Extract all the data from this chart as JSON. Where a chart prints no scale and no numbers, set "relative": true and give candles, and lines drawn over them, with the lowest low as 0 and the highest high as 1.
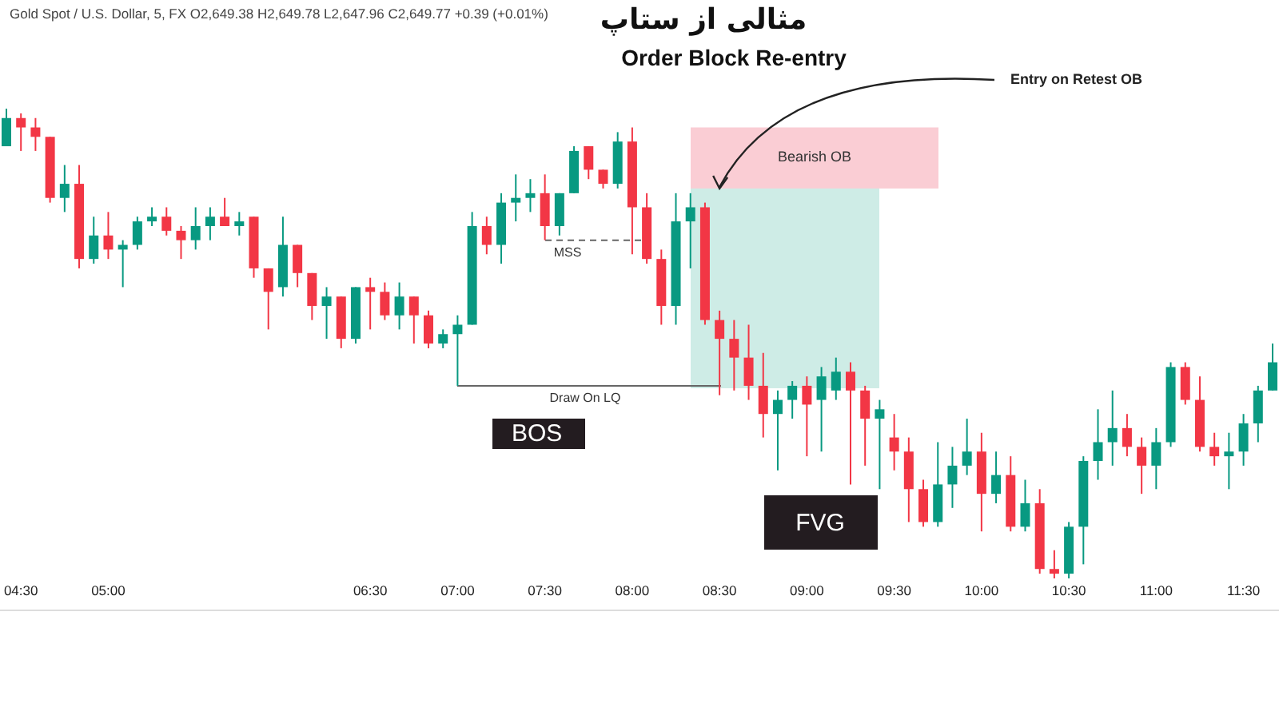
{
  "chart_data": {
    "type": "candlestick",
    "title": "مثالی از ستاپ",
    "subtitle": "Order Block Re-entry",
    "relative": true,
    "tick_labels": "x",
    "categories": [
      null,
      "04:30",
      null,
      null,
      null,
      null,
      null,
      "05:00",
      null,
      null,
      null,
      null,
      null,
      null,
      null,
      null,
      null,
      null,
      null,
      null,
      null,
      null,
      null,
      null,
      null,
      "06:30",
      null,
      null,
      null,
      null,
      null,
      "07:00",
      null,
      null,
      null,
      null,
      null,
      "07:30",
      null,
      null,
      null,
      null,
      null,
      "08:00",
      null,
      null,
      null,
      null,
      null,
      "08:30",
      null,
      null,
      null,
      null,
      null,
      "09:00",
      null,
      null,
      null,
      null,
      null,
      "09:30",
      null,
      null,
      null,
      null,
      null,
      "10:00",
      null,
      null,
      null,
      null,
      null,
      "10:30",
      null,
      null,
      null,
      null,
      null,
      "11:00",
      null,
      null,
      null,
      null,
      null,
      "11:30",
      null,
      null
    ],
    "ohlc": [
      [
        0.92,
        1,
        0.92,
        0.98
      ],
      [
        0.98,
        0.99,
        0.91,
        0.96
      ],
      [
        0.96,
        0.98,
        0.91,
        0.94
      ],
      [
        0.94,
        0.94,
        0.8,
        0.81
      ],
      [
        0.81,
        0.88,
        0.78,
        0.84
      ],
      [
        0.84,
        0.88,
        0.66,
        0.68
      ],
      [
        0.68,
        0.77,
        0.67,
        0.73
      ],
      [
        0.73,
        0.78,
        0.68,
        0.7
      ],
      [
        0.7,
        0.72,
        0.62,
        0.71
      ],
      [
        0.71,
        0.77,
        0.7,
        0.76
      ],
      [
        0.76,
        0.79,
        0.75,
        0.77
      ],
      [
        0.77,
        0.79,
        0.73,
        0.74
      ],
      [
        0.74,
        0.75,
        0.68,
        0.72
      ],
      [
        0.72,
        0.79,
        0.7,
        0.75
      ],
      [
        0.75,
        0.79,
        0.72,
        0.77
      ],
      [
        0.77,
        0.81,
        0.75,
        0.75
      ],
      [
        0.75,
        0.78,
        0.73,
        0.76
      ],
      [
        0.77,
        0.77,
        0.64,
        0.66
      ],
      [
        0.66,
        0.66,
        0.53,
        0.61
      ],
      [
        0.62,
        0.77,
        0.6,
        0.71
      ],
      [
        0.71,
        0.71,
        0.62,
        0.65
      ],
      [
        0.65,
        0.65,
        0.55,
        0.58
      ],
      [
        0.58,
        0.62,
        0.51,
        0.6
      ],
      [
        0.6,
        0.6,
        0.49,
        0.51
      ],
      [
        0.51,
        0.62,
        0.5,
        0.62
      ],
      [
        0.62,
        0.64,
        0.53,
        0.61
      ],
      [
        0.61,
        0.63,
        0.55,
        0.56
      ],
      [
        0.56,
        0.63,
        0.53,
        0.6
      ],
      [
        0.6,
        0.6,
        0.5,
        0.56
      ],
      [
        0.56,
        0.57,
        0.49,
        0.5
      ],
      [
        0.5,
        0.53,
        0.49,
        0.52
      ],
      [
        0.52,
        0.56,
        0.41,
        0.54
      ],
      [
        0.54,
        0.78,
        0.54,
        0.75
      ],
      [
        0.75,
        0.77,
        0.69,
        0.71
      ],
      [
        0.71,
        0.82,
        0.67,
        0.8
      ],
      [
        0.8,
        0.86,
        0.76,
        0.81
      ],
      [
        0.81,
        0.85,
        0.78,
        0.82
      ],
      [
        0.82,
        0.86,
        0.72,
        0.75
      ],
      [
        0.75,
        0.82,
        0.73,
        0.82
      ],
      [
        0.82,
        0.92,
        0.82,
        0.91
      ],
      [
        0.92,
        0.92,
        0.85,
        0.87
      ],
      [
        0.87,
        0.87,
        0.83,
        0.84
      ],
      [
        0.84,
        0.95,
        0.83,
        0.93
      ],
      [
        0.93,
        0.96,
        0.69,
        0.79
      ],
      [
        0.79,
        0.82,
        0.67,
        0.68
      ],
      [
        0.68,
        0.7,
        0.54,
        0.58
      ],
      [
        0.58,
        0.82,
        0.54,
        0.76
      ],
      [
        0.76,
        0.82,
        0.66,
        0.79
      ],
      [
        0.79,
        0.8,
        0.54,
        0.55
      ],
      [
        0.55,
        0.57,
        0.39,
        0.51
      ],
      [
        0.51,
        0.55,
        0.4,
        0.47
      ],
      [
        0.47,
        0.54,
        0.38,
        0.41
      ],
      [
        0.41,
        0.48,
        0.3,
        0.35
      ],
      [
        0.35,
        0.4,
        0.23,
        0.38
      ],
      [
        0.38,
        0.42,
        0.34,
        0.41
      ],
      [
        0.41,
        0.43,
        0.26,
        0.37
      ],
      [
        0.38,
        0.45,
        0.27,
        0.43
      ],
      [
        0.4,
        0.47,
        0.38,
        0.44
      ],
      [
        0.44,
        0.46,
        0.2,
        0.4
      ],
      [
        0.4,
        0.41,
        0.24,
        0.34
      ],
      [
        0.34,
        0.38,
        0.19,
        0.36
      ],
      [
        0.3,
        0.35,
        0.23,
        0.27
      ],
      [
        0.27,
        0.3,
        0.12,
        0.19
      ],
      [
        0.19,
        0.21,
        0.11,
        0.12
      ],
      [
        0.12,
        0.29,
        0.11,
        0.2
      ],
      [
        0.2,
        0.28,
        0.15,
        0.24
      ],
      [
        0.24,
        0.34,
        0.22,
        0.27
      ],
      [
        0.27,
        0.31,
        0.1,
        0.18
      ],
      [
        0.18,
        0.27,
        0.16,
        0.22
      ],
      [
        0.22,
        0.26,
        0.1,
        0.11
      ],
      [
        0.11,
        0.21,
        0.1,
        0.16
      ],
      [
        0.16,
        0.19,
        0.01,
        0.02
      ],
      [
        0.02,
        0.06,
        0,
        0.01
      ],
      [
        0.01,
        0.12,
        0,
        0.11
      ],
      [
        0.11,
        0.26,
        0.03,
        0.25
      ],
      [
        0.25,
        0.36,
        0.21,
        0.29
      ],
      [
        0.29,
        0.4,
        0.24,
        0.32
      ],
      [
        0.32,
        0.35,
        0.26,
        0.28
      ],
      [
        0.28,
        0.3,
        0.18,
        0.24
      ],
      [
        0.24,
        0.32,
        0.19,
        0.29
      ],
      [
        0.29,
        0.46,
        0.28,
        0.45
      ],
      [
        0.45,
        0.46,
        0.37,
        0.38
      ],
      [
        0.38,
        0.43,
        0.27,
        0.28
      ],
      [
        0.28,
        0.31,
        0.24,
        0.26
      ],
      [
        0.26,
        0.31,
        0.19,
        0.27
      ],
      [
        0.27,
        0.35,
        0.24,
        0.33
      ],
      [
        0.33,
        0.41,
        0.29,
        0.4
      ],
      [
        0.4,
        0.5,
        0.4,
        0.46
      ]
    ],
    "bands": [
      {
        "axis": "y",
        "from": 0.83,
        "to": 0.96,
        "label": "Bearish OB",
        "color": "#f9c4cc"
      }
    ],
    "ref_lines": [
      {
        "axis": "y",
        "value": 0.72,
        "label": "MSS",
        "line_style": "dashed"
      },
      {
        "axis": "y",
        "value": 0.41,
        "label": "Draw On LQ",
        "line_style": "solid"
      }
    ],
    "annotations": [
      "Gold Spot / U.S. Dollar, 5, FX O2,649.38 H2,649.78 L2,647.96 C2,649.77 +0.39 (+0.01%)",
      {
        "text": "Entry on Retest OB",
        "x": "08:30",
        "y": 0.83
      },
      "BOS",
      "FVG"
    ]
  }
}
